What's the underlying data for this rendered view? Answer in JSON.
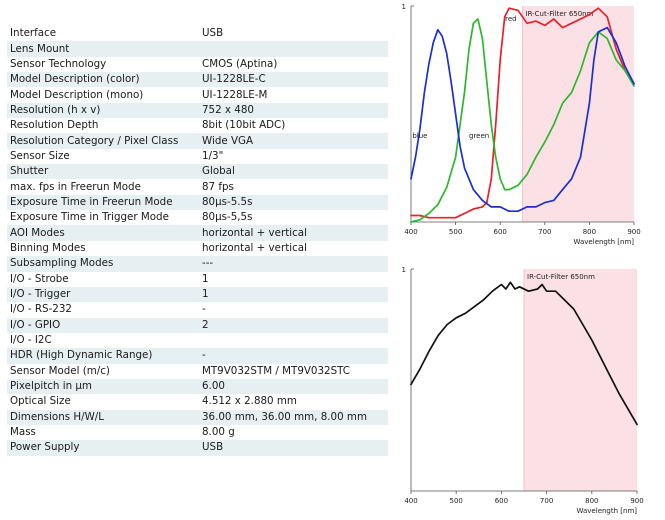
{
  "specs": {
    "rows": [
      {
        "label": "Interface",
        "value": "USB"
      },
      {
        "label": "Lens Mount",
        "value": ""
      },
      {
        "label": "Sensor Technology",
        "value": "CMOS (Aptina)"
      },
      {
        "label": "Model Description (color)",
        "value": "UI-1228LE-C"
      },
      {
        "label": "Model Description (mono)",
        "value": "UI-1228LE-M"
      },
      {
        "label": "Resolution (h x v)",
        "value": "752 x 480"
      },
      {
        "label": "Resolution Depth",
        "value": "8bit (10bit ADC)"
      },
      {
        "label": "Resolution Category / Pixel Class",
        "value": "Wide VGA"
      },
      {
        "label": "Sensor Size",
        "value": "1/3\""
      },
      {
        "label": "Shutter",
        "value": "Global"
      },
      {
        "label": "max. fps in Freerun Mode",
        "value": "87 fps"
      },
      {
        "label": "Exposure Time in Freerun Mode",
        "value": "80µs-5.5s"
      },
      {
        "label": "Exposure Time in Trigger Mode",
        "value": "80µs-5,5s"
      },
      {
        "label": "AOI Modes",
        "value": "horizontal + vertical"
      },
      {
        "label": "Binning Modes",
        "value": "horizontal + vertical"
      },
      {
        "label": "Subsampling Modes",
        "value": "---"
      },
      {
        "label": "I/O - Strobe",
        "value": "1"
      },
      {
        "label": "I/O - Trigger",
        "value": "1"
      },
      {
        "label": "I/O - RS-232",
        "value": "-"
      },
      {
        "label": "I/O - GPIO",
        "value": "2"
      },
      {
        "label": "I/O - I2C",
        "value": ""
      },
      {
        "label": "HDR (High Dynamic Range)",
        "value": "-"
      },
      {
        "label": "Sensor Model (m/c)",
        "value": "MT9V032STM / MT9V032STC"
      },
      {
        "label": "Pixelpitch in µm",
        "value": "6.00"
      },
      {
        "label": "Optical Size",
        "value": "4.512 x 2.880 mm"
      },
      {
        "label": "Dimensions H/W/L",
        "value": "36.00 mm, 36.00 mm, 8.00 mm"
      },
      {
        "label": "Mass",
        "value": "8.00 g"
      },
      {
        "label": "Power Supply",
        "value": "USB"
      }
    ]
  },
  "colors": {
    "row_alt": "#e6eff2",
    "filter_band": "#fbe1e6",
    "red": "#e8202a",
    "green": "#2cb82c",
    "blue": "#1a2fcf",
    "mono": "#111111"
  },
  "chart_data": [
    {
      "type": "line",
      "xlabel": "Wavelength [nm]",
      "ylabel": "",
      "xlim": [
        400,
        900
      ],
      "ylim": [
        0,
        1
      ],
      "xticks": [
        "400",
        "500",
        "600",
        "700",
        "800",
        "900"
      ],
      "yticks": [
        "1"
      ],
      "grid": false,
      "annotation": {
        "text": "IR-Cut-Filter 650nm",
        "band": [
          650,
          900
        ]
      },
      "series": [
        {
          "name": "red",
          "color": "#e8202a",
          "x": [
            400,
            420,
            440,
            460,
            480,
            500,
            520,
            540,
            560,
            570,
            580,
            590,
            600,
            610,
            620,
            640,
            660,
            680,
            700,
            720,
            740,
            760,
            780,
            800,
            820,
            840,
            860,
            880,
            900
          ],
          "y": [
            0.03,
            0.03,
            0.02,
            0.02,
            0.02,
            0.02,
            0.04,
            0.06,
            0.07,
            0.09,
            0.2,
            0.45,
            0.75,
            0.95,
            0.99,
            0.98,
            0.92,
            0.93,
            0.91,
            0.94,
            0.9,
            0.92,
            0.94,
            0.96,
            0.99,
            0.95,
            0.8,
            0.7,
            0.64
          ]
        },
        {
          "name": "green",
          "color": "#2cb82c",
          "x": [
            400,
            420,
            440,
            460,
            480,
            500,
            520,
            530,
            540,
            550,
            560,
            570,
            580,
            590,
            600,
            610,
            620,
            640,
            660,
            680,
            700,
            720,
            740,
            760,
            780,
            800,
            820,
            840,
            860,
            880,
            900
          ],
          "y": [
            0.0,
            0.01,
            0.04,
            0.08,
            0.16,
            0.3,
            0.6,
            0.8,
            0.92,
            0.94,
            0.85,
            0.65,
            0.45,
            0.3,
            0.2,
            0.15,
            0.15,
            0.17,
            0.22,
            0.3,
            0.37,
            0.45,
            0.55,
            0.6,
            0.7,
            0.83,
            0.88,
            0.85,
            0.75,
            0.7,
            0.63
          ]
        },
        {
          "name": "blue",
          "color": "#1a2fcf",
          "x": [
            400,
            410,
            420,
            430,
            440,
            450,
            460,
            470,
            480,
            490,
            500,
            510,
            520,
            540,
            560,
            580,
            600,
            620,
            640,
            660,
            680,
            700,
            720,
            740,
            760,
            780,
            800,
            810,
            820,
            840,
            860,
            880,
            900
          ],
          "y": [
            0.2,
            0.3,
            0.43,
            0.6,
            0.73,
            0.83,
            0.89,
            0.86,
            0.78,
            0.65,
            0.5,
            0.35,
            0.25,
            0.15,
            0.1,
            0.07,
            0.07,
            0.05,
            0.05,
            0.07,
            0.07,
            0.09,
            0.1,
            0.15,
            0.2,
            0.3,
            0.55,
            0.75,
            0.88,
            0.9,
            0.83,
            0.72,
            0.64
          ]
        }
      ],
      "labels": [
        {
          "text": "red",
          "series": "red",
          "x": 611,
          "y": 0.93
        },
        {
          "text": "green",
          "series": "green",
          "x": 530,
          "y": 0.39
        },
        {
          "text": "blue",
          "series": "blue",
          "x": 403,
          "y": 0.39
        }
      ]
    },
    {
      "type": "line",
      "xlabel": "Wavelength [nm]",
      "ylabel": "",
      "xlim": [
        400,
        900
      ],
      "ylim": [
        0,
        1
      ],
      "xticks": [
        "400",
        "500",
        "600",
        "700",
        "800",
        "900"
      ],
      "yticks": [
        "1"
      ],
      "grid": false,
      "annotation": {
        "text": "IR-Cut-Filter 650nm",
        "band": [
          650,
          900
        ]
      },
      "series": [
        {
          "name": "",
          "color": "#111111",
          "x": [
            400,
            420,
            440,
            460,
            480,
            500,
            520,
            540,
            560,
            580,
            600,
            610,
            620,
            630,
            640,
            660,
            680,
            690,
            700,
            720,
            740,
            760,
            780,
            800,
            820,
            840,
            860,
            880,
            900
          ],
          "y": [
            0.48,
            0.55,
            0.63,
            0.7,
            0.75,
            0.78,
            0.8,
            0.83,
            0.86,
            0.9,
            0.93,
            0.91,
            0.94,
            0.91,
            0.92,
            0.9,
            0.91,
            0.93,
            0.9,
            0.9,
            0.86,
            0.82,
            0.75,
            0.68,
            0.6,
            0.52,
            0.44,
            0.37,
            0.3
          ]
        }
      ]
    }
  ]
}
